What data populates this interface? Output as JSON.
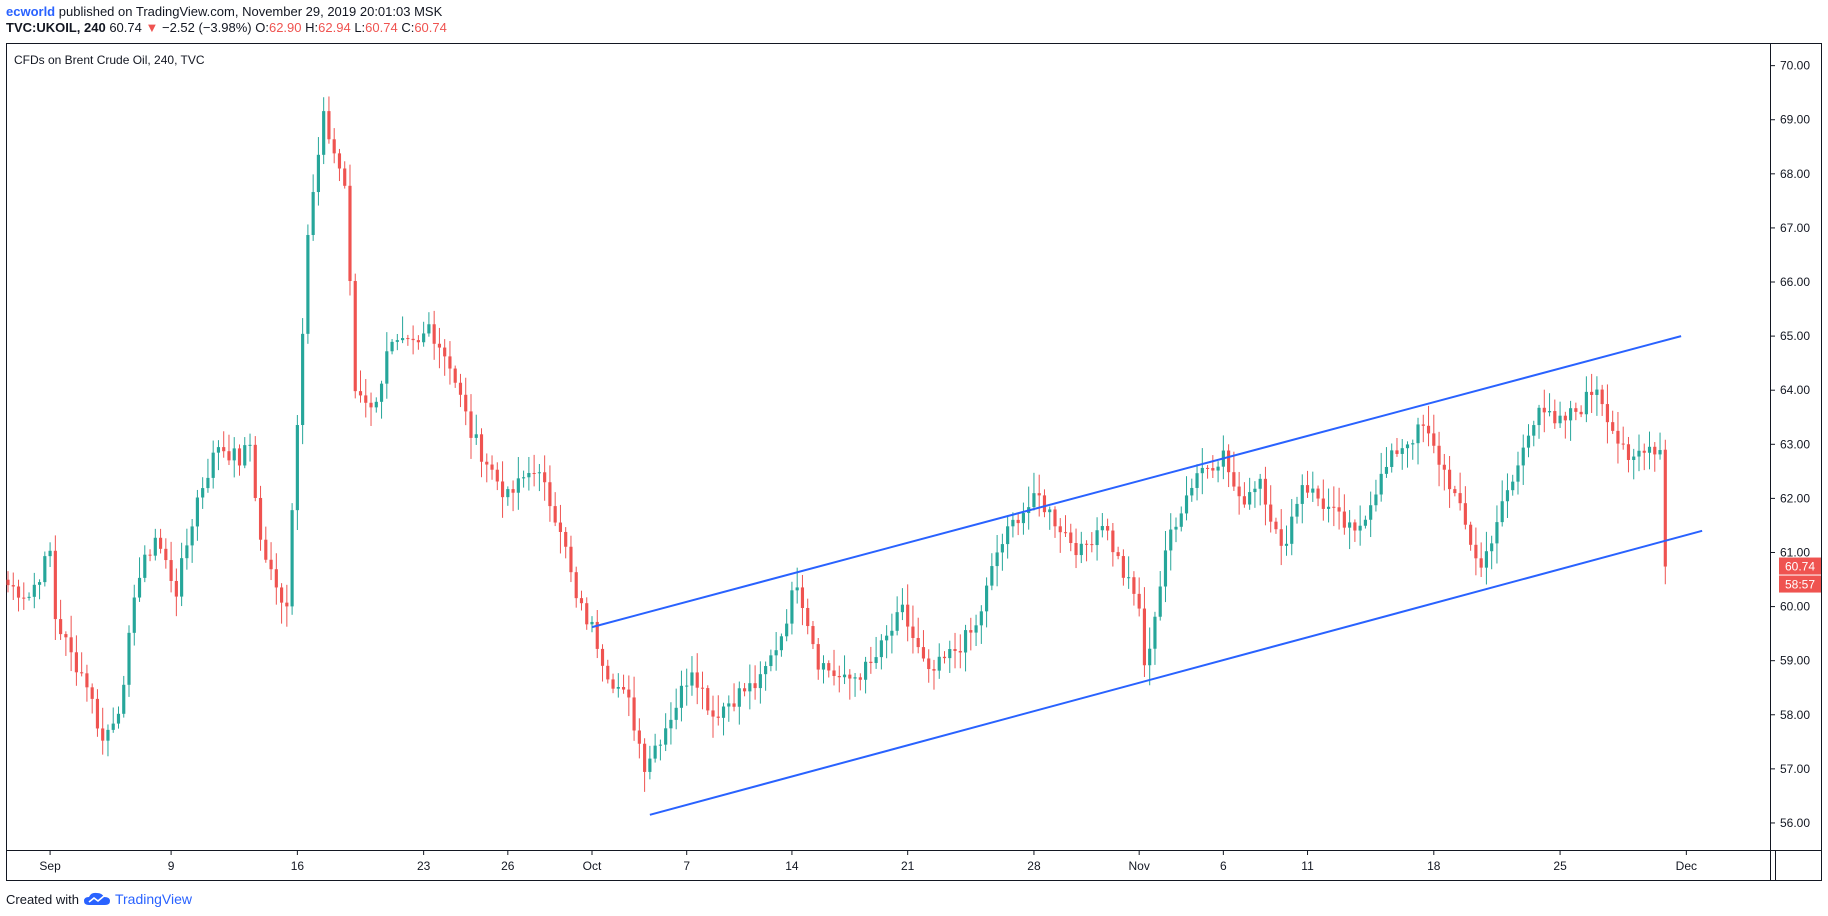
{
  "header": {
    "author": "ecworld",
    "published_text": "published on TradingView.com, November 29, 2019 20:01:03 MSK",
    "symbol": "TVC:UKOIL, 240",
    "last": "60.74",
    "change_arrow": "▼",
    "change": "−2.52 (−3.98%)",
    "o_label": "O:",
    "o_value": "62.90",
    "h_label": "H:",
    "h_value": "62.94",
    "l_label": "L:",
    "l_value": "60.74",
    "c_label": "C:",
    "c_value": "60.74"
  },
  "footer": {
    "created_with": "Created with",
    "brand": "TradingView"
  },
  "colors": {
    "up": "#26a69a",
    "down": "#ef5350",
    "channel": "#2962ff",
    "axis": "#131722"
  },
  "chart_data": {
    "type": "candlestick",
    "title": "CFDs on Brent Crude Oil, 240, TVC",
    "y_ticks": [
      "56.00",
      "57.00",
      "58.00",
      "59.00",
      "60.00",
      "61.00",
      "62.00",
      "63.00",
      "64.00",
      "65.00",
      "66.00",
      "67.00",
      "68.00",
      "69.00",
      "70.00"
    ],
    "ylim": [
      55.5,
      70.4
    ],
    "x_ticks": [
      "Sep",
      "9",
      "16",
      "23",
      "26",
      "Oct",
      "7",
      "14",
      "21",
      "28",
      "Nov",
      "6",
      "11",
      "18",
      "25",
      "Dec"
    ],
    "x_tick_index": [
      8,
      31,
      55,
      79,
      95,
      111,
      129,
      149,
      171,
      195,
      215,
      231,
      247,
      271,
      295,
      319
    ],
    "xlim": [
      0,
      333
    ],
    "last_price_label": "60.74",
    "countdown_label": "58:57",
    "channel_lines": [
      {
        "x1": 111,
        "y1": 59.62,
        "x2": 318,
        "y2": 65.0
      },
      {
        "x1": 122,
        "y1": 56.15,
        "x2": 322,
        "y2": 61.4
      }
    ],
    "anchors": [
      [
        0,
        60.4
      ],
      [
        4,
        60.2
      ],
      [
        8,
        61.0
      ],
      [
        9,
        59.8
      ],
      [
        12,
        59.1
      ],
      [
        15,
        58.6
      ],
      [
        18,
        57.5
      ],
      [
        22,
        58.4
      ],
      [
        24,
        60.3
      ],
      [
        28,
        61.3
      ],
      [
        32,
        60.3
      ],
      [
        36,
        62.0
      ],
      [
        40,
        63.0
      ],
      [
        44,
        62.7
      ],
      [
        46,
        63.0
      ],
      [
        48,
        61.2
      ],
      [
        51,
        60.3
      ],
      [
        53,
        60.1
      ],
      [
        57,
        66.9
      ],
      [
        60,
        69.0
      ],
      [
        64,
        67.8
      ],
      [
        66,
        64.0
      ],
      [
        70,
        63.7
      ],
      [
        72,
        64.8
      ],
      [
        78,
        64.8
      ],
      [
        80,
        65.2
      ],
      [
        84,
        64.5
      ],
      [
        88,
        63.2
      ],
      [
        92,
        62.5
      ],
      [
        95,
        62.0
      ],
      [
        100,
        62.6
      ],
      [
        105,
        61.5
      ],
      [
        108,
        60.1
      ],
      [
        111,
        59.6
      ],
      [
        114,
        58.8
      ],
      [
        118,
        58.2
      ],
      [
        121,
        57.1
      ],
      [
        124,
        57.6
      ],
      [
        127,
        58.2
      ],
      [
        130,
        58.9
      ],
      [
        134,
        58.0
      ],
      [
        139,
        58.4
      ],
      [
        143,
        58.6
      ],
      [
        147,
        59.5
      ],
      [
        150,
        60.5
      ],
      [
        154,
        59.0
      ],
      [
        159,
        58.6
      ],
      [
        164,
        58.9
      ],
      [
        170,
        59.9
      ],
      [
        175,
        58.7
      ],
      [
        179,
        59.1
      ],
      [
        184,
        59.6
      ],
      [
        188,
        61.0
      ],
      [
        192,
        61.7
      ],
      [
        196,
        62.0
      ],
      [
        199,
        61.6
      ],
      [
        204,
        61.0
      ],
      [
        208,
        61.6
      ],
      [
        212,
        60.6
      ],
      [
        215,
        60.0
      ],
      [
        216,
        58.8
      ],
      [
        219,
        60.4
      ],
      [
        221,
        61.4
      ],
      [
        226,
        62.5
      ],
      [
        231,
        62.8
      ],
      [
        234,
        61.9
      ],
      [
        238,
        62.4
      ],
      [
        242,
        61.0
      ],
      [
        246,
        62.3
      ],
      [
        251,
        61.8
      ],
      [
        256,
        61.3
      ],
      [
        260,
        62.2
      ],
      [
        264,
        62.9
      ],
      [
        269,
        63.3
      ],
      [
        271,
        62.9
      ],
      [
        274,
        62.3
      ],
      [
        278,
        61.2
      ],
      [
        280,
        60.7
      ],
      [
        283,
        61.6
      ],
      [
        286,
        62.3
      ],
      [
        288,
        62.9
      ],
      [
        291,
        63.8
      ],
      [
        294,
        63.3
      ],
      [
        299,
        63.7
      ],
      [
        302,
        64.1
      ],
      [
        305,
        63.3
      ],
      [
        308,
        62.6
      ],
      [
        311,
        63.0
      ],
      [
        314,
        62.9
      ],
      [
        315,
        60.74
      ]
    ]
  }
}
